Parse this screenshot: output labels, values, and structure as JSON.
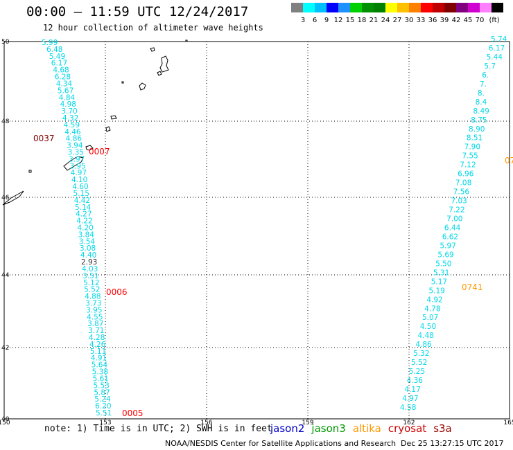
{
  "header": {
    "title": "00:00 – 11:59 UTC 12/24/2017",
    "subtitle": "12 hour collection of altimeter wave heights"
  },
  "legend": {
    "unit": "(ft)",
    "colors": [
      "#808080",
      "#00ffff",
      "#00bfff",
      "#0000ff",
      "#1e90ff",
      "#00d000",
      "#009000",
      "#008000",
      "#ffff00",
      "#ffc000",
      "#ff8000",
      "#ff0000",
      "#c00000",
      "#800000",
      "#800080",
      "#d000d0",
      "#ff80ff",
      "#000000"
    ],
    "labels": [
      "3",
      "6",
      "9",
      "12",
      "15",
      "18",
      "21",
      "24",
      "27",
      "30",
      "33",
      "36",
      "39",
      "42",
      "45",
      "70"
    ]
  },
  "axes": {
    "lon_ticks": [
      "150",
      "153",
      "156",
      "159",
      "162",
      "165"
    ],
    "lat_ticks": [
      "50",
      "48",
      "46",
      "44",
      "42",
      "40"
    ]
  },
  "passes": [
    {
      "id": "0037",
      "color": "#800000"
    },
    {
      "id": "0007",
      "color": "#ff0000"
    },
    {
      "id": "0006",
      "color": "#ff0000"
    },
    {
      "id": "0005",
      "color": "#ff0000"
    },
    {
      "id": "0741",
      "color": "#ff9900"
    },
    {
      "id": "07",
      "color": "#ff9900"
    }
  ],
  "track_west": [
    "5.99",
    "6.48",
    "5.49",
    "6.17",
    "4.68",
    "6.28",
    "4.34",
    "5.67",
    "4.84",
    "4.98",
    "3.70",
    "4.32",
    "4.59",
    "4.46",
    "4.86",
    "3.94",
    "3.35",
    "3.97",
    "3.95",
    "4.97",
    "4.10",
    "4.60",
    "5.15",
    "4.42",
    "5.14",
    "4.27",
    "4.22",
    "4.20",
    "3.84",
    "3.54",
    "3.08",
    "4.40",
    "2.93",
    "4.03",
    "3.51",
    "5.12",
    "5.52",
    "4.88",
    "3.73",
    "3.95",
    "4.55",
    "3.87",
    "3.71",
    "4.28",
    "4.26",
    "5.11",
    "4.91",
    "5.64",
    "5.38",
    "5.61",
    "5.53",
    "5.87",
    "5.24",
    "6.20",
    "5.51"
  ],
  "track_east": [
    "5.74",
    "6.17",
    "5.44",
    "5.7",
    "6.",
    "7.",
    "8.",
    "8.4",
    "8.49",
    "8.75",
    "8.90",
    "8.51",
    "7.90",
    "7.55",
    "7.12",
    "6.96",
    "7.08",
    "7.56",
    "7.03",
    "7.22",
    "7.00",
    "6.44",
    "6.62",
    "5.97",
    "5.69",
    "5.50",
    "5.31",
    "5.17",
    "5.19",
    "4.92",
    "4.78",
    "5.07",
    "4.50",
    "4.48",
    "4.86",
    "5.32",
    "5.52",
    "5.25",
    "4.36",
    "4.17",
    "4.97",
    "4.58"
  ],
  "footer": {
    "note": "note: 1) Time is in UTC; 2) SWH is in feet",
    "missions": [
      {
        "name": "jason2",
        "color": "#0000cc"
      },
      {
        "name": "jason3",
        "color": "#009900"
      },
      {
        "name": "altika",
        "color": "#ff9900"
      },
      {
        "name": "cryosat",
        "color": "#cc0000"
      },
      {
        "name": "s3a",
        "color": "#990000"
      }
    ],
    "credit": "NOAA/NESDIS Center for Satellite Applications and Research",
    "timestamp": "Dec 25 13:27:15 UTC 2017"
  }
}
